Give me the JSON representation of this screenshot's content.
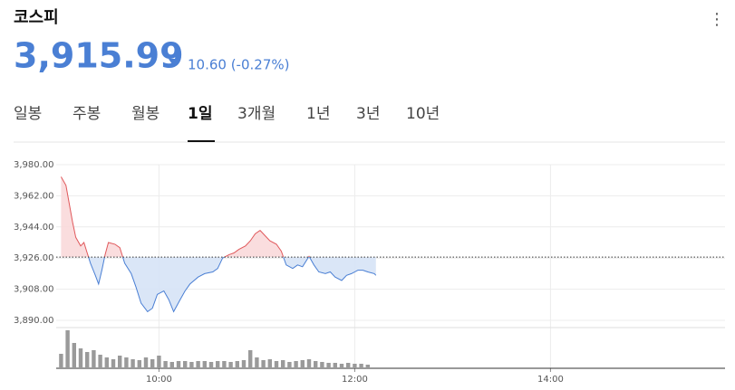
{
  "header": {
    "title": "코스피",
    "price": "3,915.99",
    "change": "10.60 (-0.27%)"
  },
  "tabs": [
    "일봉",
    "주봉",
    "월봉",
    "1일",
    "3개월",
    "1년",
    "3년",
    "10년"
  ],
  "chart_data": {
    "type": "line",
    "x": [
      "09:00",
      "09:03",
      "09:05",
      "09:07",
      "09:09",
      "09:12",
      "09:14",
      "09:16",
      "09:18",
      "09:21",
      "09:23",
      "09:25",
      "09:27",
      "09:29",
      "09:33",
      "09:36",
      "09:39",
      "09:43",
      "09:46",
      "09:49",
      "09:53",
      "09:56",
      "09:59",
      "10:03",
      "10:06",
      "10:09",
      "10:13",
      "10:16",
      "10:19",
      "10:24",
      "10:28",
      "10:33",
      "10:36",
      "10:39",
      "10:43",
      "10:46",
      "10:49",
      "10:53",
      "10:56",
      "10:59",
      "11:02",
      "11:05",
      "11:08",
      "11:12",
      "11:15",
      "11:18",
      "11:22",
      "11:25",
      "11:28",
      "11:32",
      "11:35",
      "11:38",
      "11:42",
      "11:45",
      "11:48",
      "11:52",
      "11:55",
      "11:58",
      "12:02",
      "12:05",
      "12:08",
      "12:12",
      "12:13"
    ],
    "series": [
      {
        "name": "코스피",
        "values": [
          3973,
          3968,
          3957.5,
          3947,
          3938,
          3933,
          3935,
          3929,
          3923,
          3916,
          3911,
          3919,
          3928,
          3935,
          3934,
          3932,
          3923,
          3917,
          3909,
          3900,
          3895,
          3897,
          3905,
          3907,
          3902,
          3895,
          3902,
          3907,
          3911,
          3915,
          3917,
          3918,
          3920,
          3926,
          3928,
          3929,
          3931,
          3933,
          3936,
          3940,
          3942,
          3939,
          3936,
          3934,
          3930,
          3922,
          3920,
          3922,
          3921,
          3927,
          3922,
          3918,
          3917,
          3918,
          3915,
          3913,
          3916,
          3917,
          3919,
          3919,
          3918,
          3917,
          3916
        ]
      }
    ],
    "baseline": 3926.59,
    "up_color": "#e0585b",
    "down_color": "#4a7fd4",
    "xlim": [
      "08:57",
      "15:47"
    ],
    "xticks": [
      "10:00",
      "12:00",
      "14:00"
    ],
    "ylim": [
      3890,
      3980
    ],
    "yticks": [
      {
        "value": 3890,
        "label": "3,890.00"
      },
      {
        "value": 3908,
        "label": "3,908.00"
      },
      {
        "value": 3926,
        "label": "3,926.00"
      },
      {
        "value": 3944,
        "label": "3,944.00"
      },
      {
        "value": 3962,
        "label": "3,962.00"
      },
      {
        "value": 3980,
        "label": "3,980.00"
      }
    ],
    "grid": true,
    "volume": {
      "color": "#9a9a9a",
      "vlim": [
        0,
        45
      ],
      "x": [
        "09:00",
        "09:04",
        "09:08",
        "09:12",
        "09:16",
        "09:20",
        "09:24",
        "09:28",
        "09:32",
        "09:36",
        "09:40",
        "09:44",
        "09:48",
        "09:52",
        "09:56",
        "10:00",
        "10:04",
        "10:08",
        "10:12",
        "10:16",
        "10:20",
        "10:24",
        "10:28",
        "10:32",
        "10:36",
        "10:40",
        "10:44",
        "10:48",
        "10:52",
        "10:56",
        "11:00",
        "11:04",
        "11:08",
        "11:12",
        "11:16",
        "11:20",
        "11:24",
        "11:28",
        "11:32",
        "11:36",
        "11:40",
        "11:44",
        "11:48",
        "11:52",
        "11:56",
        "12:00",
        "12:04",
        "12:08"
      ],
      "values": [
        16,
        42,
        28,
        22,
        18,
        20,
        15,
        12,
        10,
        14,
        12,
        10,
        9,
        12,
        10,
        14,
        8,
        7,
        8,
        8,
        7,
        8,
        8,
        7,
        8,
        8,
        7,
        8,
        9,
        20,
        12,
        9,
        10,
        8,
        9,
        7,
        8,
        9,
        10,
        8,
        7,
        6,
        6,
        5,
        6,
        5,
        5,
        4
      ]
    }
  }
}
